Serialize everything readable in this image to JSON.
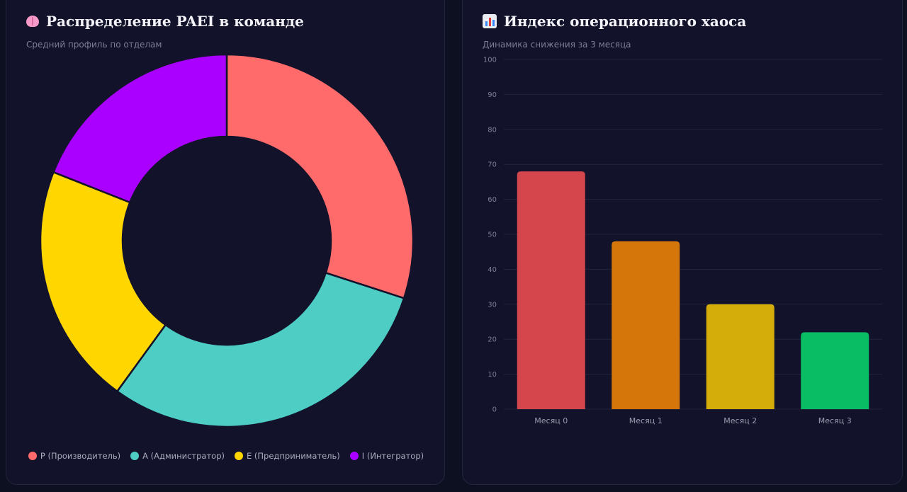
{
  "left_card": {
    "title": "Распределение PAEI в команде",
    "subtitle": "Средний профиль по отделам",
    "icon": "brain-icon"
  },
  "right_card": {
    "title": "Индекс операционного хаоса",
    "subtitle": "Динамика снижения за 3 месяца",
    "icon": "bar-chart-icon"
  },
  "chart_data": [
    {
      "type": "pie",
      "style": "donut",
      "labels": [
        "P (Производитель)",
        "A (Администратор)",
        "E (Предприниматель)",
        "I (Интегратор)"
      ],
      "values": [
        30,
        30,
        21,
        19
      ],
      "colors": [
        "#ff6b6b",
        "#4ecdc4",
        "#ffd600",
        "#aa00ff"
      ],
      "legend": "bottom"
    },
    {
      "type": "bar",
      "categories": [
        "Месяц 0",
        "Месяц 1",
        "Месяц 2",
        "Месяц 3"
      ],
      "values": [
        68,
        48,
        30,
        22
      ],
      "colors": [
        "#d4464c",
        "#d4760a",
        "#d4ad0a",
        "#08bd63"
      ],
      "ylim": [
        0,
        100
      ],
      "yticks": [
        "0",
        "10",
        "20",
        "30",
        "40",
        "50",
        "60",
        "70",
        "80",
        "90",
        "100"
      ],
      "grid": true
    }
  ]
}
